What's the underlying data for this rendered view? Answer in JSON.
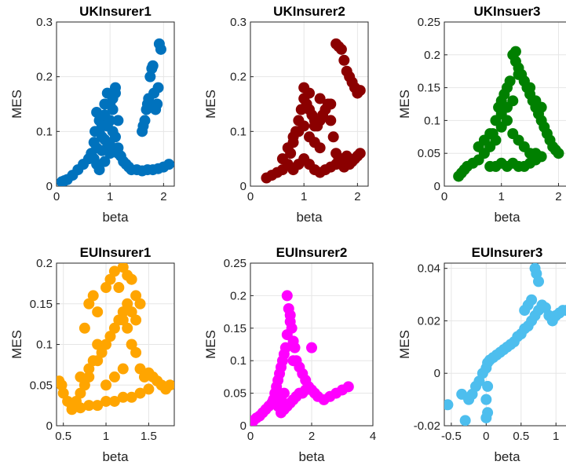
{
  "chart_data": [
    {
      "type": "scatter",
      "title": "UKInsurer1",
      "xlabel": "beta",
      "ylabel": "MES",
      "xlim": [
        0,
        2.2
      ],
      "ylim": [
        0,
        0.3
      ],
      "xticks": [
        "0",
        "1",
        "2"
      ],
      "yticks": [
        "0",
        "0.1",
        "0.2",
        "0.3"
      ],
      "grid": true,
      "color": "#0072BD",
      "series": [
        {
          "x": [
            0.1,
            0.15,
            0.2,
            0.3,
            0.4,
            0.5,
            0.6,
            0.65,
            0.7,
            0.72,
            0.75,
            0.8,
            0.85,
            0.9,
            0.95,
            1.0,
            1.05,
            1.1,
            1.15,
            1.2,
            1.25,
            1.3,
            1.35,
            1.4,
            1.5,
            1.6,
            1.7,
            1.8,
            1.9,
            2.0,
            2.1,
            0.7,
            0.75,
            0.8,
            0.85,
            0.9,
            0.95,
            1.0,
            1.05,
            1.1,
            1.15,
            0.75,
            0.8,
            0.9,
            0.95,
            1.0,
            1.05,
            1.1,
            0.85,
            0.9,
            1.0,
            1.15,
            1.6,
            1.62,
            1.65,
            1.68,
            1.7,
            1.72,
            1.75,
            1.78,
            1.8,
            1.82,
            1.85,
            1.88,
            1.9,
            1.92,
            1.95
          ],
          "y": [
            0.008,
            0.01,
            0.012,
            0.02,
            0.03,
            0.04,
            0.05,
            0.06,
            0.08,
            0.1,
            0.135,
            0.12,
            0.09,
            0.15,
            0.17,
            0.12,
            0.1,
            0.18,
            0.07,
            0.055,
            0.045,
            0.04,
            0.035,
            0.03,
            0.03,
            0.028,
            0.03,
            0.03,
            0.032,
            0.035,
            0.04,
            0.05,
            0.07,
            0.1,
            0.11,
            0.13,
            0.08,
            0.06,
            0.14,
            0.09,
            0.06,
            0.04,
            0.03,
            0.045,
            0.11,
            0.15,
            0.16,
            0.17,
            0.065,
            0.085,
            0.075,
            0.12,
            0.1,
            0.11,
            0.12,
            0.14,
            0.15,
            0.16,
            0.2,
            0.215,
            0.22,
            0.17,
            0.14,
            0.15,
            0.18,
            0.26,
            0.25
          ]
        }
      ]
    },
    {
      "type": "scatter",
      "title": "UKInsurer2",
      "xlabel": "beta",
      "ylabel": "MES",
      "xlim": [
        0,
        2.2
      ],
      "ylim": [
        0,
        0.3
      ],
      "xticks": [
        "0",
        "1",
        "2"
      ],
      "yticks": [
        "0",
        "0.1",
        "0.2",
        "0.3"
      ],
      "grid": true,
      "color": "#8B0000",
      "series": [
        {
          "x": [
            0.3,
            0.4,
            0.5,
            0.6,
            0.7,
            0.75,
            0.8,
            0.85,
            0.9,
            0.95,
            1.0,
            1.05,
            1.1,
            1.15,
            1.2,
            1.25,
            1.3,
            1.35,
            1.4,
            1.45,
            1.5,
            1.55,
            1.6,
            1.65,
            1.7,
            1.75,
            1.8,
            1.85,
            1.9,
            1.95,
            2.0,
            2.05,
            0.6,
            0.7,
            0.8,
            0.9,
            1.0,
            1.1,
            1.2,
            1.3,
            0.8,
            0.9,
            1.0,
            1.1,
            1.2,
            1.3,
            1.4,
            1.5,
            1.6,
            1.7,
            1.8,
            1.1,
            1.3,
            1.5,
            1.6,
            1.65,
            1.7,
            1.75,
            1.8,
            1.85,
            1.9,
            1.95,
            2.0,
            2.05,
            1.2,
            1.0
          ],
          "y": [
            0.015,
            0.02,
            0.025,
            0.03,
            0.04,
            0.06,
            0.08,
            0.1,
            0.12,
            0.14,
            0.16,
            0.15,
            0.14,
            0.13,
            0.12,
            0.11,
            0.12,
            0.13,
            0.14,
            0.15,
            0.12,
            0.09,
            0.06,
            0.05,
            0.04,
            0.035,
            0.04,
            0.04,
            0.045,
            0.05,
            0.055,
            0.06,
            0.05,
            0.07,
            0.09,
            0.1,
            0.11,
            0.09,
            0.08,
            0.07,
            0.03,
            0.04,
            0.05,
            0.04,
            0.03,
            0.025,
            0.03,
            0.035,
            0.04,
            0.05,
            0.055,
            0.17,
            0.16,
            0.15,
            0.26,
            0.255,
            0.25,
            0.23,
            0.21,
            0.2,
            0.19,
            0.18,
            0.17,
            0.175,
            0.11,
            0.18
          ]
        }
      ]
    },
    {
      "type": "scatter",
      "title": "UKInsuer3",
      "xlabel": "beta",
      "ylabel": "MES",
      "xlim": [
        0,
        2.2
      ],
      "ylim": [
        0,
        0.25
      ],
      "xticks": [
        "0",
        "1",
        "2"
      ],
      "yticks": [
        "0",
        "0.05",
        "0.1",
        "0.15",
        "0.2",
        "0.25"
      ],
      "grid": true,
      "color": "#008000",
      "series": [
        {
          "x": [
            0.25,
            0.3,
            0.35,
            0.4,
            0.5,
            0.6,
            0.7,
            0.8,
            0.85,
            0.9,
            0.95,
            1.0,
            1.05,
            1.1,
            1.15,
            1.2,
            1.25,
            1.3,
            1.35,
            1.4,
            1.45,
            1.5,
            1.55,
            1.6,
            1.65,
            1.7,
            1.75,
            1.8,
            1.85,
            1.9,
            1.95,
            2.0,
            0.6,
            0.7,
            0.8,
            0.9,
            1.0,
            1.1,
            1.2,
            1.3,
            1.4,
            1.5,
            1.6,
            1.7,
            0.8,
            0.9,
            1.0,
            1.1,
            1.2,
            1.3,
            1.4,
            1.5,
            1.6,
            1.0,
            1.1,
            1.2,
            1.25,
            1.3,
            1.4,
            1.5,
            1.6,
            1.7
          ],
          "y": [
            0.015,
            0.02,
            0.025,
            0.03,
            0.035,
            0.04,
            0.05,
            0.06,
            0.08,
            0.1,
            0.12,
            0.13,
            0.14,
            0.15,
            0.16,
            0.2,
            0.19,
            0.18,
            0.17,
            0.16,
            0.15,
            0.14,
            0.13,
            0.12,
            0.11,
            0.1,
            0.09,
            0.08,
            0.07,
            0.06,
            0.055,
            0.05,
            0.06,
            0.07,
            0.08,
            0.07,
            0.09,
            0.1,
            0.08,
            0.07,
            0.06,
            0.05,
            0.05,
            0.045,
            0.03,
            0.03,
            0.035,
            0.03,
            0.035,
            0.03,
            0.03,
            0.035,
            0.04,
            0.11,
            0.12,
            0.13,
            0.205,
            0.17,
            0.16,
            0.15,
            0.13,
            0.12
          ]
        }
      ]
    },
    {
      "type": "scatter",
      "title": "EUInsurer1",
      "xlabel": "beta",
      "ylabel": "MES",
      "xlim": [
        0.42,
        1.8
      ],
      "ylim": [
        0,
        0.2
      ],
      "xticks": [
        "0.5",
        "1",
        "1.5"
      ],
      "yticks": [
        "0",
        "0.05",
        "0.1",
        "0.15",
        "0.2"
      ],
      "grid": true,
      "color": "#FFA500",
      "series": [
        {
          "x": [
            0.45,
            0.48,
            0.5,
            0.55,
            0.6,
            0.65,
            0.7,
            0.75,
            0.8,
            0.85,
            0.9,
            0.95,
            1.0,
            1.05,
            1.1,
            1.15,
            1.2,
            1.25,
            1.3,
            1.35,
            1.4,
            1.45,
            1.5,
            1.55,
            1.6,
            1.65,
            1.7,
            1.75,
            0.6,
            0.7,
            0.8,
            0.9,
            1.0,
            1.1,
            1.2,
            1.3,
            1.4,
            1.5,
            0.7,
            0.8,
            0.9,
            1.0,
            1.1,
            1.2,
            0.75,
            0.8,
            0.85,
            0.9,
            1.0,
            1.05,
            1.1,
            1.15,
            1.2,
            1.25,
            1.3,
            1.35,
            1.2,
            1.25,
            1.3,
            1.35,
            1.4
          ],
          "y": [
            0.055,
            0.05,
            0.04,
            0.03,
            0.025,
            0.03,
            0.04,
            0.05,
            0.06,
            0.08,
            0.1,
            0.09,
            0.1,
            0.11,
            0.12,
            0.13,
            0.14,
            0.12,
            0.1,
            0.09,
            0.07,
            0.06,
            0.065,
            0.06,
            0.055,
            0.05,
            0.045,
            0.05,
            0.02,
            0.022,
            0.025,
            0.025,
            0.03,
            0.03,
            0.035,
            0.035,
            0.04,
            0.045,
            0.06,
            0.07,
            0.08,
            0.05,
            0.06,
            0.07,
            0.12,
            0.15,
            0.16,
            0.14,
            0.17,
            0.18,
            0.19,
            0.17,
            0.13,
            0.15,
            0.14,
            0.13,
            0.195,
            0.185,
            0.18,
            0.16,
            0.15
          ]
        }
      ]
    },
    {
      "type": "scatter",
      "title": "EUInsurer2",
      "xlabel": "beta",
      "ylabel": "MES",
      "xlim": [
        0,
        4
      ],
      "ylim": [
        0,
        0.25
      ],
      "xticks": [
        "0",
        "2",
        "4"
      ],
      "yticks": [
        "0",
        "0.05",
        "0.1",
        "0.15",
        "0.2",
        "0.25"
      ],
      "grid": true,
      "color": "#FF00FF",
      "series": [
        {
          "x": [
            0.05,
            0.1,
            0.2,
            0.3,
            0.4,
            0.5,
            0.6,
            0.7,
            0.75,
            0.8,
            0.85,
            0.9,
            0.95,
            1.0,
            1.05,
            1.1,
            1.15,
            1.2,
            1.25,
            1.3,
            1.35,
            1.4,
            1.45,
            1.5,
            1.6,
            1.7,
            1.8,
            1.9,
            2.0,
            2.1,
            2.2,
            2.4,
            2.6,
            2.8,
            3.0,
            3.2,
            1.0,
            1.1,
            1.2,
            1.3,
            1.4,
            1.5,
            1.6,
            1.7,
            1.8,
            1.9,
            2.0,
            0.9,
            1.0,
            1.1,
            1.2,
            1.3,
            1.4
          ],
          "y": [
            0.005,
            0.008,
            0.012,
            0.015,
            0.02,
            0.025,
            0.03,
            0.035,
            0.04,
            0.05,
            0.06,
            0.07,
            0.08,
            0.09,
            0.1,
            0.11,
            0.12,
            0.2,
            0.18,
            0.17,
            0.15,
            0.13,
            0.12,
            0.1,
            0.09,
            0.08,
            0.07,
            0.06,
            0.055,
            0.05,
            0.045,
            0.04,
            0.045,
            0.05,
            0.055,
            0.06,
            0.02,
            0.025,
            0.03,
            0.035,
            0.04,
            0.045,
            0.05,
            0.05,
            0.055,
            0.06,
            0.12,
            0.03,
            0.04,
            0.05,
            0.14,
            0.16,
            0.1
          ]
        }
      ]
    },
    {
      "type": "scatter",
      "title": "EUInsurer3",
      "xlabel": "beta",
      "ylabel": "MES",
      "xlim": [
        -0.6,
        1.2
      ],
      "ylim": [
        -0.02,
        0.042
      ],
      "xticks": [
        "-0.5",
        "0",
        "0.5",
        "1"
      ],
      "yticks": [
        "-0.02",
        "0",
        "0.02",
        "0.04"
      ],
      "grid": true,
      "color": "#4DBEEE",
      "series": [
        {
          "x": [
            -0.55,
            -0.35,
            -0.3,
            -0.25,
            -0.2,
            -0.15,
            -0.1,
            -0.05,
            0.0,
            0.02,
            0.05,
            0.1,
            0.15,
            0.2,
            0.25,
            0.3,
            0.35,
            0.4,
            0.45,
            0.5,
            0.55,
            0.6,
            0.65,
            0.7,
            0.75,
            0.8,
            0.85,
            0.9,
            0.95,
            1.0,
            1.05,
            1.1,
            1.15,
            0.0,
            0.02,
            0.0,
            0.02,
            0.7,
            0.72,
            0.75,
            0.65,
            0.6,
            0.55
          ],
          "y": [
            -0.012,
            -0.008,
            -0.018,
            -0.01,
            -0.008,
            -0.005,
            -0.003,
            0.0,
            0.002,
            0.004,
            0.005,
            0.006,
            0.007,
            0.008,
            0.009,
            0.01,
            0.011,
            0.012,
            0.014,
            0.015,
            0.017,
            0.018,
            0.02,
            0.022,
            0.024,
            0.026,
            0.025,
            0.022,
            0.02,
            0.022,
            0.023,
            0.024,
            0.024,
            -0.01,
            -0.015,
            -0.017,
            -0.005,
            0.04,
            0.038,
            0.035,
            0.028,
            0.026,
            0.024
          ]
        }
      ]
    }
  ]
}
